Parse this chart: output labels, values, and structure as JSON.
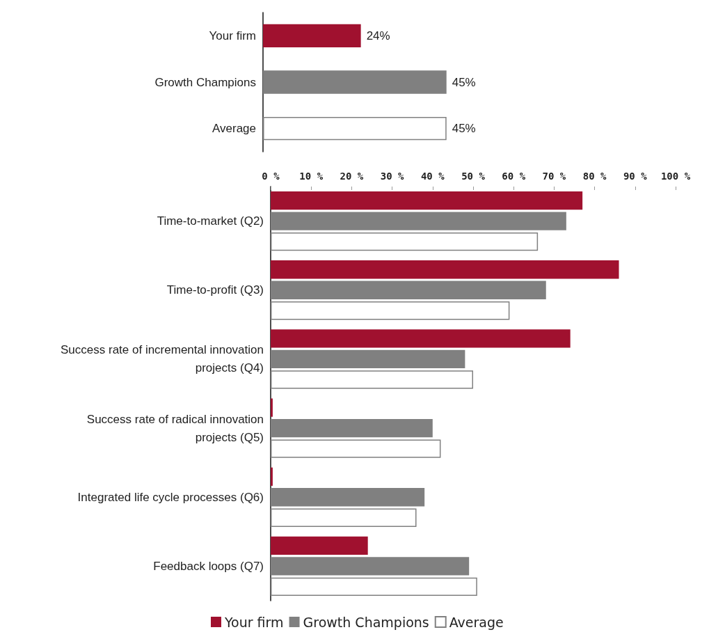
{
  "chart_data": [
    {
      "type": "bar",
      "orientation": "horizontal",
      "categories": [
        "Your firm",
        "Growth Champions",
        "Average"
      ],
      "values": [
        24,
        45,
        45
      ],
      "colors": [
        "#a0112f",
        "#808080",
        "#ffffff"
      ],
      "value_labels": [
        "24%",
        "45%",
        "45%"
      ]
    },
    {
      "type": "bar",
      "orientation": "horizontal",
      "categories": [
        "Time-to-market (Q2)",
        "Time-to-profit (Q3)",
        "Success rate of incremental innovation projects (Q4)",
        "Success rate of radical innovation projects (Q5)",
        "Integrated life cycle processes (Q6)",
        "Feedback loops (Q7)"
      ],
      "series": [
        {
          "name": "Your firm",
          "color": "#a0112f",
          "values": [
            77,
            86,
            74,
            0.5,
            0.5,
            24
          ]
        },
        {
          "name": "Growth Champions",
          "color": "#808080",
          "values": [
            73,
            68,
            48,
            40,
            38,
            49
          ]
        },
        {
          "name": "Average",
          "color": "#ffffff",
          "values": [
            66,
            59,
            50,
            42,
            36,
            51
          ]
        }
      ],
      "xlim": [
        0,
        100
      ],
      "xticks": [
        {
          "value": 0,
          "label": "0 %"
        },
        {
          "value": 10,
          "label": "10 %"
        },
        {
          "value": 20,
          "label": "20 %"
        },
        {
          "value": 30,
          "label": "30 %"
        },
        {
          "value": 40,
          "label": "40 %"
        },
        {
          "value": 50,
          "label": "50 %"
        },
        {
          "value": 60,
          "label": "60 %"
        },
        {
          "value": 70,
          "label": "70 %"
        },
        {
          "value": 80,
          "label": "80 %"
        },
        {
          "value": 90,
          "label": "90 %"
        },
        {
          "value": 100,
          "label": "100 %"
        }
      ],
      "grid": false,
      "legend": "bottom"
    }
  ]
}
